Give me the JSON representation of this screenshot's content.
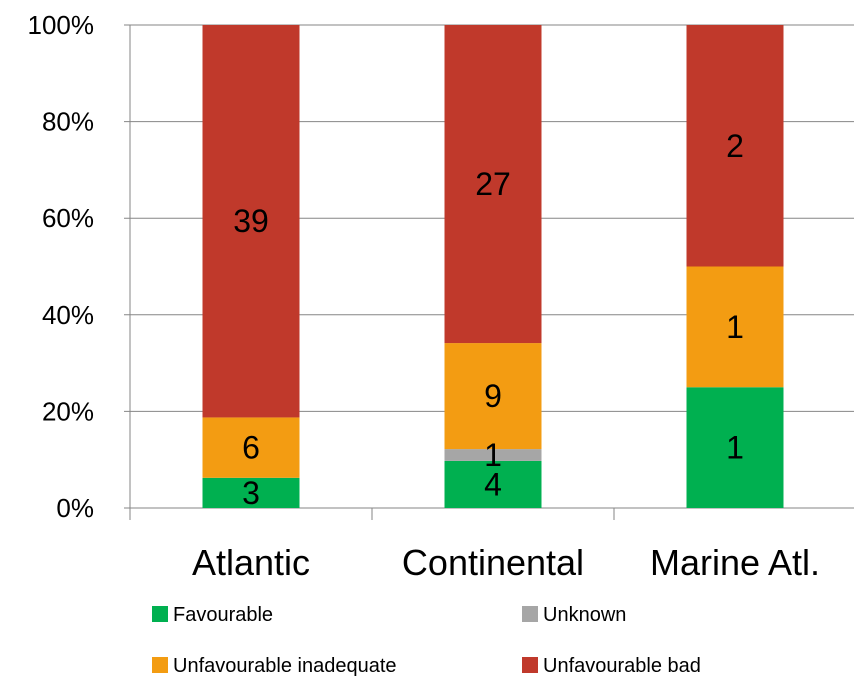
{
  "chart_data": {
    "type": "bar",
    "stacked": true,
    "normalized": true,
    "categories": [
      "Atlantic",
      "Continental",
      "Marine Atl."
    ],
    "series": [
      {
        "name": "Favourable",
        "color": "#00b050",
        "values": [
          3,
          4,
          1
        ]
      },
      {
        "name": "Unknown",
        "color": "#a6a6a6",
        "values": [
          0,
          1,
          0
        ]
      },
      {
        "name": "Unfavourable inadequate",
        "color": "#f39c12",
        "values": [
          6,
          9,
          1
        ]
      },
      {
        "name": "Unfavourable bad",
        "color": "#c0392b",
        "values": [
          39,
          27,
          2
        ]
      }
    ],
    "yticks": [
      "0%",
      "20%",
      "40%",
      "60%",
      "80%",
      "100%"
    ],
    "ylim": [
      0,
      100
    ],
    "grid": true,
    "legend_position": "bottom"
  }
}
